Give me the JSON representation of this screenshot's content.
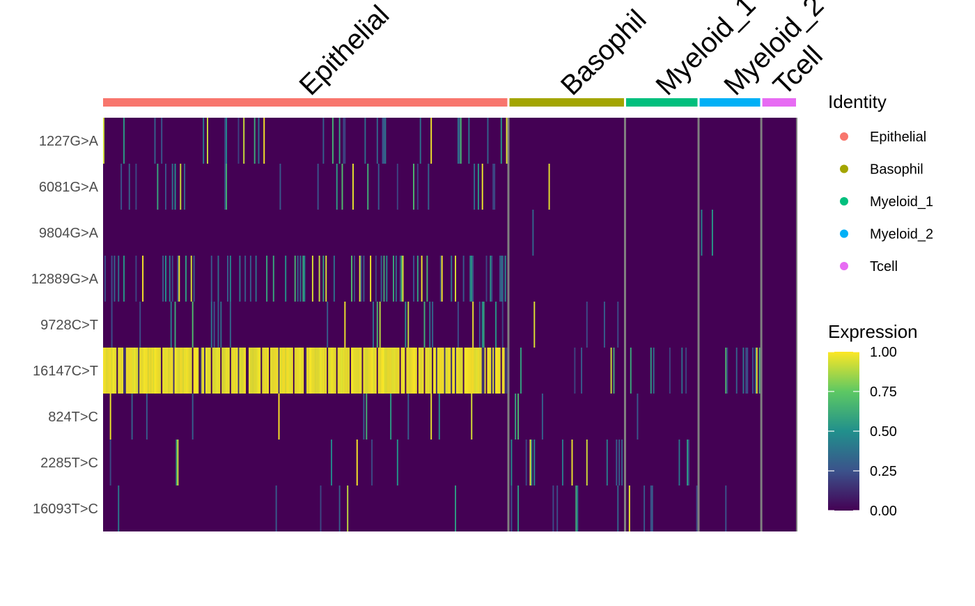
{
  "chart_data": {
    "type": "heatmap",
    "title": "",
    "xlabel": "",
    "ylabel": "",
    "rows": [
      "1227G>A",
      "6081G>A",
      "9804G>A",
      "12889G>A",
      "9728C>T",
      "16147C>T",
      "824T>C",
      "2285T>C",
      "16093T>C"
    ],
    "groups": [
      {
        "name": "Epithelial",
        "color": "#F8766D",
        "n_cells": 300
      },
      {
        "name": "Basophil",
        "color": "#A3A500",
        "n_cells": 85
      },
      {
        "name": "Myeloid_1",
        "color": "#00BF7D",
        "n_cells": 53
      },
      {
        "name": "Myeloid_2",
        "color": "#00B0F6",
        "n_cells": 45
      },
      {
        "name": "Tcell",
        "color": "#E76BF3",
        "n_cells": 25
      }
    ],
    "row_expression_fraction": {
      "1227G>A": {
        "Epithelial": 0.12,
        "Basophil": 0.0,
        "Myeloid_1": 0.0,
        "Myeloid_2": 0.02,
        "Tcell": 0.0
      },
      "6081G>A": {
        "Epithelial": 0.08,
        "Basophil": 0.01,
        "Myeloid_1": 0.0,
        "Myeloid_2": 0.0,
        "Tcell": 0.0
      },
      "9804G>A": {
        "Epithelial": 0.0,
        "Basophil": 0.03,
        "Myeloid_1": 0.0,
        "Myeloid_2": 0.07,
        "Tcell": 0.0
      },
      "12889G>A": {
        "Epithelial": 0.22,
        "Basophil": 0.0,
        "Myeloid_1": 0.0,
        "Myeloid_2": 0.0,
        "Tcell": 0.0
      },
      "9728C>T": {
        "Epithelial": 0.1,
        "Basophil": 0.05,
        "Myeloid_1": 0.0,
        "Myeloid_2": 0.0,
        "Tcell": 0.0
      },
      "16147C>T": {
        "Epithelial": 0.85,
        "Basophil": 0.1,
        "Myeloid_1": 0.09,
        "Myeloid_2": 0.2,
        "Tcell": 0.04
      },
      "824T>C": {
        "Epithelial": 0.03,
        "Basophil": 0.03,
        "Myeloid_1": 0.02,
        "Myeloid_2": 0.02,
        "Tcell": 0.0
      },
      "2285T>C": {
        "Epithelial": 0.02,
        "Basophil": 0.08,
        "Myeloid_1": 0.04,
        "Myeloid_2": 0.0,
        "Tcell": 0.0
      },
      "16093T>C": {
        "Epithelial": 0.01,
        "Basophil": 0.06,
        "Myeloid_1": 0.06,
        "Myeloid_2": 0.06,
        "Tcell": 0.0
      }
    },
    "value_range": [
      0,
      1
    ],
    "legend": {
      "identity_title": "Identity",
      "colorbar_title": "Expression",
      "colorbar_ticks": [
        "1.00",
        "0.75",
        "0.50",
        "0.25",
        "0.00"
      ],
      "colorbar_values": [
        1.0,
        0.75,
        0.5,
        0.25,
        0.0
      ],
      "palette": "viridis",
      "placement": "right"
    },
    "colors": {
      "low": "#440154",
      "mid_low": "#3B528B",
      "mid": "#21908C",
      "mid_high": "#5DC863",
      "high": "#FDE725",
      "group_divider": "#808080"
    }
  }
}
